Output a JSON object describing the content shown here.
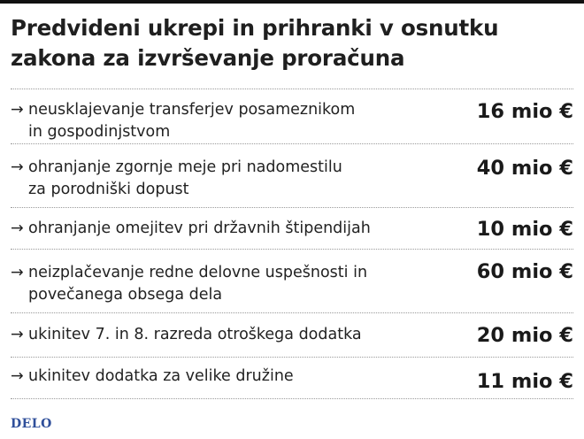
{
  "title": "Predvideni ukrepi in prihranki v osnutku zakona za izvrševanje proračuna",
  "arrow_glyph": "→",
  "items": [
    {
      "line1": "neusklajevanje transferjev posameznikom",
      "line2": "in gospodinjstvom",
      "amount": "16 mio €"
    },
    {
      "line1": "ohranjanje zgornje meje pri nadomestilu",
      "line2": "za porodniški dopust",
      "amount": "40 mio €"
    },
    {
      "line1": "ohranjanje omejitev pri državnih štipendijah",
      "line2": "",
      "amount": "10 mio €"
    },
    {
      "line1": "neizplačevanje redne delovne uspešnosti in",
      "line2": "povečanega obsega dela",
      "amount": "60 mio €"
    },
    {
      "line1": "ukinitev 7. in 8. razreda otroškega dodatka",
      "line2": "",
      "amount": "20 mio €"
    },
    {
      "line1": "ukinitev dodatka za velike družine",
      "line2": "",
      "amount": "11 mio €"
    }
  ],
  "brand": "DELO"
}
